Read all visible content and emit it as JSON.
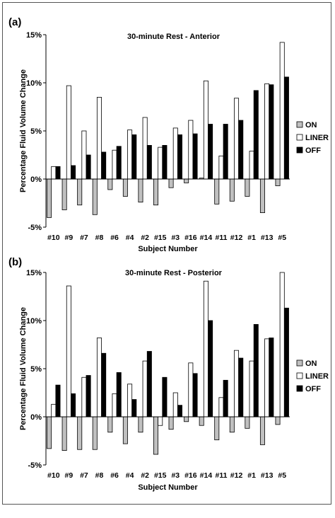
{
  "colors": {
    "on": "#c0c0c0",
    "liner": "#ffffff",
    "off": "#000000",
    "stroke": "#000000",
    "axis": "#000000"
  },
  "legend": {
    "placement": "right",
    "entries": [
      "ON",
      "LINER",
      "OFF"
    ]
  },
  "chart_data": [
    {
      "type": "bar",
      "panel_label": "(a)",
      "title": "30-minute Rest - Anterior",
      "xlabel": "Subject Number",
      "ylabel": "Percentage Fluid Volume Change",
      "ylim": [
        -5,
        15
      ],
      "yticks": [
        -5,
        0,
        5,
        10,
        15
      ],
      "ytick_labels": [
        "-5%",
        "0%",
        "5%",
        "10%",
        "15%"
      ],
      "grid": false,
      "legend_position": "right",
      "categories": [
        "#10",
        "#9",
        "#7",
        "#8",
        "#6",
        "#4",
        "#2",
        "#15",
        "#3",
        "#16",
        "#14",
        "#11",
        "#12",
        "#1",
        "#13",
        "#5"
      ],
      "series": [
        {
          "name": "ON",
          "values": [
            -4.0,
            -3.2,
            -2.7,
            -3.7,
            -1.1,
            -1.8,
            -2.4,
            -2.7,
            -0.9,
            -0.4,
            0.1,
            -2.6,
            -2.3,
            -1.8,
            -3.5,
            -0.7
          ]
        },
        {
          "name": "LINER",
          "values": [
            1.3,
            9.7,
            5.0,
            8.5,
            3.0,
            5.1,
            6.4,
            3.3,
            5.3,
            6.1,
            10.2,
            2.4,
            8.4,
            2.9,
            9.9,
            14.2
          ]
        },
        {
          "name": "OFF",
          "values": [
            1.3,
            1.4,
            2.5,
            2.8,
            3.4,
            4.6,
            3.5,
            3.5,
            4.6,
            4.7,
            5.7,
            5.7,
            6.1,
            9.2,
            9.8,
            10.6
          ]
        }
      ]
    },
    {
      "type": "bar",
      "panel_label": "(b)",
      "title": "30-minute Rest - Posterior",
      "xlabel": "Subject Number",
      "ylabel": "Percentage Fluid Volume Change",
      "ylim": [
        -5,
        15
      ],
      "yticks": [
        -5,
        0,
        5,
        10,
        15
      ],
      "ytick_labels": [
        "-5%",
        "0%",
        "5%",
        "10%",
        "15%"
      ],
      "grid": false,
      "legend_position": "right",
      "categories": [
        "#10",
        "#9",
        "#7",
        "#8",
        "#6",
        "#4",
        "#2",
        "#15",
        "#3",
        "#16",
        "#14",
        "#11",
        "#12",
        "#1",
        "#13",
        "#5"
      ],
      "series": [
        {
          "name": "ON",
          "values": [
            -3.3,
            -3.5,
            -3.4,
            -3.4,
            -1.6,
            -2.8,
            -1.6,
            -3.9,
            -1.3,
            -0.5,
            -0.9,
            -2.4,
            -1.6,
            -1.2,
            -2.9,
            -0.8
          ]
        },
        {
          "name": "LINER",
          "values": [
            1.3,
            13.6,
            4.1,
            8.2,
            2.4,
            3.4,
            5.8,
            -0.9,
            2.5,
            5.6,
            14.1,
            2.0,
            6.9,
            5.8,
            8.1,
            15.0
          ]
        },
        {
          "name": "OFF",
          "values": [
            3.3,
            2.4,
            4.3,
            6.6,
            4.6,
            1.8,
            6.8,
            4.1,
            1.2,
            4.5,
            10.0,
            3.8,
            6.1,
            9.6,
            8.2,
            11.3
          ]
        }
      ]
    }
  ]
}
